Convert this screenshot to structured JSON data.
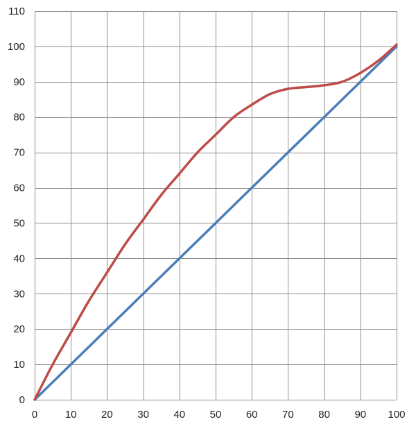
{
  "chart_data": {
    "type": "line",
    "title": "",
    "xlabel": "",
    "ylabel": "",
    "xlim": [
      0,
      100
    ],
    "ylim": [
      0,
      110
    ],
    "x_ticks": [
      "0",
      "10",
      "20",
      "30",
      "40",
      "50",
      "60",
      "70",
      "80",
      "90",
      "100"
    ],
    "y_ticks": [
      "0",
      "10",
      "20",
      "30",
      "40",
      "50",
      "60",
      "70",
      "80",
      "90",
      "100",
      "110"
    ],
    "grid": true,
    "legend": "none",
    "series": [
      {
        "color": "#4a7ebb",
        "x": [
          0,
          10,
          20,
          30,
          40,
          50,
          60,
          70,
          80,
          90,
          100
        ],
        "values": [
          0,
          10,
          20,
          30,
          40,
          50,
          60,
          70,
          80,
          90,
          100
        ]
      },
      {
        "color": "#be4b48",
        "x": [
          0,
          5,
          10,
          15,
          20,
          25,
          30,
          35,
          40,
          45,
          50,
          55,
          60,
          65,
          70,
          75,
          80,
          85,
          90,
          95,
          100
        ],
        "values": [
          0,
          10,
          19,
          28,
          36,
          44,
          51,
          58,
          64,
          70,
          75,
          80,
          83.5,
          86.5,
          88,
          88.5,
          89,
          90,
          92.5,
          96,
          100.5
        ]
      }
    ]
  }
}
